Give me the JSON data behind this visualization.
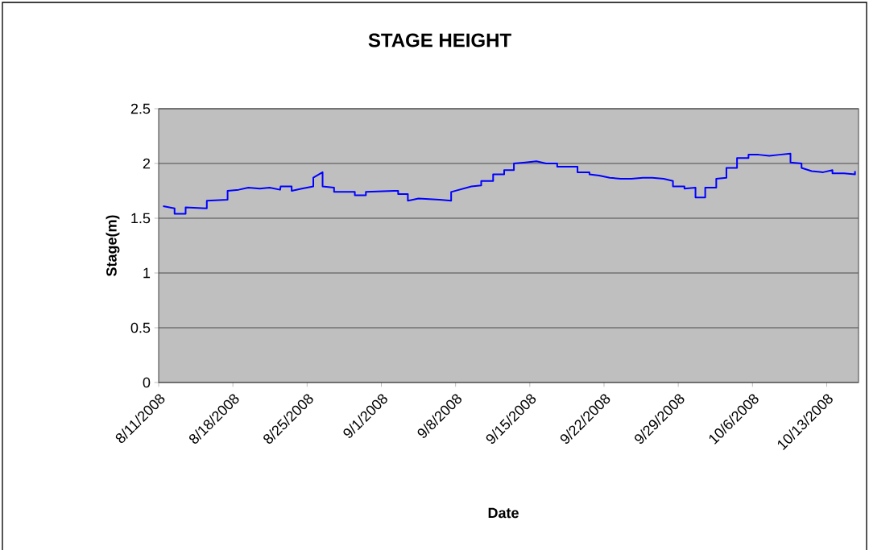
{
  "chart_data": {
    "type": "line",
    "title": "STAGE HEIGHT",
    "xlabel": "Date",
    "ylabel": "Stage(m)",
    "color": "#0000ff",
    "grid": "y",
    "x": [
      "2008-08-11T10:00",
      "2008-08-12T12:00",
      "2008-08-12T12:00",
      "2008-08-13T13:00",
      "2008-08-13T13:00",
      "2008-08-15T13:00",
      "2008-08-15T13:00",
      "2008-08-17T12:00",
      "2008-08-17T12:00",
      "2008-08-18T13:00",
      "2008-08-19T11:00",
      "2008-08-20T13:00",
      "2008-08-21T11:00",
      "2008-08-22T11:00",
      "2008-08-22T12:00",
      "2008-08-23T13:00",
      "2008-08-23T13:00",
      "2008-08-24T12:00",
      "2008-08-25T14:00",
      "2008-08-25T14:00",
      "2008-08-26T11:00",
      "2008-08-26T11:00",
      "2008-08-27T13:00",
      "2008-08-27T13:00",
      "2008-08-29T12:00",
      "2008-08-29T12:00",
      "2008-08-30T13:00",
      "2008-08-30T13:00",
      "2008-09-02T05:00",
      "2008-09-02T14:00",
      "2008-09-02T14:00",
      "2008-09-03T12:00",
      "2008-09-03T12:00",
      "2008-09-04T12:00",
      "2008-09-06T12:00",
      "2008-09-07T14:00",
      "2008-09-07T14:00",
      "2008-09-09T12:00",
      "2008-09-10T10:00",
      "2008-09-10T10:00",
      "2008-09-11T13:00",
      "2008-09-11T13:00",
      "2008-09-12T14:00",
      "2008-09-12T14:00",
      "2008-09-13T12:00",
      "2008-09-13T12:00",
      "2008-09-14T14:00",
      "2008-09-15T15:00",
      "2008-09-16T13:00",
      "2008-09-17T14:00",
      "2008-09-17T14:00",
      "2008-09-18T12:00",
      "2008-09-19T12:00",
      "2008-09-19T12:00",
      "2008-09-20T15:00",
      "2008-09-20T15:00",
      "2008-09-21T13:00",
      "2008-09-22T13:00",
      "2008-09-23T14:00",
      "2008-09-24T14:00",
      "2008-09-25T16:00",
      "2008-09-26T13:00",
      "2008-09-27T15:00",
      "2008-09-28T12:00",
      "2008-09-28T12:00",
      "2008-09-29T14:00",
      "2008-09-29T14:00",
      "2008-09-30T15:00",
      "2008-09-30T15:00",
      "2008-10-01T13:00",
      "2008-10-01T13:00",
      "2008-10-02T14:00",
      "2008-10-02T14:00",
      "2008-10-03T13:00",
      "2008-10-03T13:00",
      "2008-10-04T13:00",
      "2008-10-04T13:00",
      "2008-10-05T15:00",
      "2008-10-05T15:00",
      "2008-10-06T14:00",
      "2008-10-07T14:00",
      "2008-10-08T13:00",
      "2008-10-09T14:00",
      "2008-10-09T14:00",
      "2008-10-10T15:00",
      "2008-10-10T15:00",
      "2008-10-11T14:00",
      "2008-10-12T16:00",
      "2008-10-13T13:00",
      "2008-10-13T13:00",
      "2008-10-14T15:00",
      "2008-10-15T16:00",
      "2008-10-15T16:00"
    ],
    "values": [
      1.61,
      1.59,
      1.54,
      1.54,
      1.6,
      1.59,
      1.66,
      1.67,
      1.75,
      1.76,
      1.78,
      1.77,
      1.78,
      1.76,
      1.79,
      1.79,
      1.75,
      1.77,
      1.79,
      1.87,
      1.92,
      1.79,
      1.78,
      1.74,
      1.74,
      1.71,
      1.71,
      1.74,
      1.75,
      1.75,
      1.72,
      1.72,
      1.66,
      1.68,
      1.67,
      1.66,
      1.74,
      1.79,
      1.8,
      1.84,
      1.84,
      1.9,
      1.9,
      1.94,
      1.94,
      2.0,
      2.01,
      2.02,
      2.0,
      2.0,
      1.97,
      1.97,
      1.97,
      1.92,
      1.92,
      1.9,
      1.89,
      1.87,
      1.86,
      1.86,
      1.87,
      1.87,
      1.86,
      1.84,
      1.79,
      1.79,
      1.77,
      1.78,
      1.69,
      1.69,
      1.78,
      1.78,
      1.86,
      1.87,
      1.96,
      1.96,
      2.05,
      2.05,
      2.08,
      2.08,
      2.07,
      2.08,
      2.09,
      2.01,
      2.0,
      1.96,
      1.93,
      1.92,
      1.94,
      1.91,
      1.91,
      1.9,
      1.93
    ],
    "xlim": [
      "2008-08-11",
      "2008-10-16"
    ],
    "ylim": [
      0,
      2.5
    ],
    "yticks": [
      0,
      0.5,
      1,
      1.5,
      2,
      2.5
    ],
    "xticks": [
      {
        "value": "2008-08-11",
        "label": "8/11/2008"
      },
      {
        "value": "2008-08-18",
        "label": "8/18/2008"
      },
      {
        "value": "2008-08-25",
        "label": "8/25/2008"
      },
      {
        "value": "2008-09-01",
        "label": "9/1/2008"
      },
      {
        "value": "2008-09-08",
        "label": "9/8/2008"
      },
      {
        "value": "2008-09-15",
        "label": "9/15/2008"
      },
      {
        "value": "2008-09-22",
        "label": "9/22/2008"
      },
      {
        "value": "2008-09-29",
        "label": "9/29/2008"
      },
      {
        "value": "2008-10-06",
        "label": "10/6/2008"
      },
      {
        "value": "2008-10-13",
        "label": "10/13/2008"
      }
    ]
  }
}
